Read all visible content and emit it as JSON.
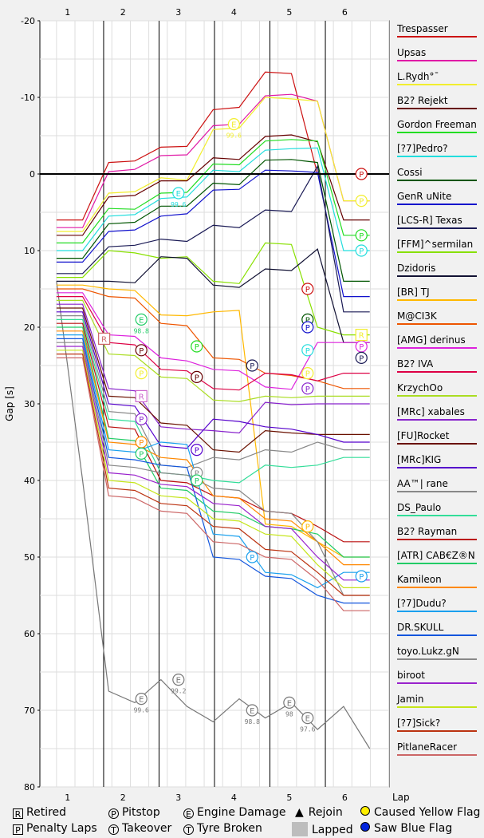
{
  "chart_data": {
    "type": "line",
    "xlabel": "Lap",
    "ylabel": "Gap [s]",
    "x_ticks": [
      "1",
      "2",
      "3",
      "4",
      "5",
      "6"
    ],
    "y_ticks": [
      "-20",
      "-10",
      "0",
      "10",
      "20",
      "30",
      "40",
      "50",
      "60",
      "70",
      "80"
    ],
    "ylim": [
      -20,
      80
    ],
    "xlim": [
      0.5,
      6.8
    ],
    "lap_lines": [
      1.65,
      2.65,
      3.65,
      4.65,
      5.65
    ],
    "baseline": 0,
    "grid": true,
    "series": [
      {
        "name": "Trespasser",
        "color": "#cc1111",
        "y": [
          6,
          6,
          -1.5,
          -1.7,
          -3.5,
          -3.6,
          -8.4,
          -8.7,
          -13.3,
          -13.1,
          0,
          0,
          0
        ]
      },
      {
        "name": "Upsas",
        "color": "#e01aa6",
        "y": [
          7,
          7,
          -0.3,
          -0.6,
          -2.4,
          -2.5,
          -6.3,
          -6.5,
          -10.2,
          -10.4,
          -9.5,
          3.5,
          3.5
        ]
      },
      {
        "name": "L.Rydh°¯",
        "color": "#f2ee2e",
        "y": [
          7.5,
          7.5,
          2.5,
          2.3,
          0.5,
          0.8,
          -5.8,
          -6.0,
          -10,
          -9.8,
          -9.5,
          3.5,
          3.5
        ]
      },
      {
        "name": "B2? Rejekt",
        "color": "#660000",
        "y": [
          8,
          8,
          3,
          2.8,
          0.9,
          0.9,
          -2.1,
          -1.9,
          -4.9,
          -5.1,
          -4.2,
          6.0,
          6.0
        ]
      },
      {
        "name": "Gordon Freeman",
        "color": "#22dd22",
        "y": [
          9,
          9,
          4.5,
          4.6,
          2.5,
          2.4,
          -1.3,
          -1.2,
          -4.3,
          -4.5,
          -4.3,
          8.0,
          8.0
        ]
      },
      {
        "name": "[?7]Pedro?",
        "color": "#22dddd",
        "y": [
          10,
          10,
          5.5,
          5.3,
          3.2,
          3.0,
          -0.5,
          -0.3,
          -3.1,
          -3.3,
          -3.4,
          10.0,
          10.0
        ]
      },
      {
        "name": "Cossi",
        "color": "#005500",
        "y": [
          11,
          11,
          6.5,
          6.3,
          4.2,
          4.2,
          1.2,
          1.4,
          -1.8,
          -1.9,
          -1.5,
          14.0,
          14.0
        ]
      },
      {
        "name": "GenR uNite",
        "color": "#1111cc",
        "y": [
          11.5,
          11.5,
          7.5,
          7.3,
          5.5,
          5.2,
          2.1,
          2.0,
          -0.5,
          -0.4,
          -0.2,
          16.0,
          16.0
        ]
      },
      {
        "name": "[LCS-R] Texas",
        "color": "#1a1a55",
        "y": [
          13,
          13,
          9.5,
          9.3,
          8.5,
          8.8,
          6.7,
          7.0,
          4.7,
          4.9,
          -1.0,
          18.0,
          18.0
        ]
      },
      {
        "name": "[FFM]^sermilan",
        "color": "#88e000",
        "y": [
          13.5,
          13.5,
          10,
          10.3,
          11,
          10.8,
          14,
          14.3,
          9,
          9.2,
          20,
          21,
          21
        ]
      },
      {
        "name": "Dzidoris",
        "color": "#111133",
        "y": [
          14,
          14,
          14,
          14.2,
          10.8,
          11.0,
          14.5,
          14.8,
          12.4,
          12.6,
          9.8,
          22,
          22
        ]
      },
      {
        "name": "[BR] TJ",
        "color": "#ffb800",
        "y": [
          14.5,
          14.5,
          15,
          15.2,
          18.4,
          18.5,
          18,
          17.8,
          45.7,
          46.0,
          48,
          50,
          50
        ]
      },
      {
        "name": "M@CI3K",
        "color": "#ee5500",
        "y": [
          15,
          15,
          16,
          16.2,
          19.5,
          19.8,
          24,
          24.2,
          26.0,
          26.3,
          27,
          28,
          28
        ]
      },
      {
        "name": "[AMG] derinus",
        "color": "#dd22dd",
        "y": [
          15.5,
          15.5,
          21,
          21.2,
          24,
          24.4,
          25.5,
          25.7,
          27.8,
          28.1,
          22,
          22,
          22
        ]
      },
      {
        "name": "B2? IVA",
        "color": "#dd0044",
        "y": [
          16,
          16,
          22,
          22.3,
          25.5,
          25.7,
          28,
          28.2,
          26,
          26.2,
          27,
          26,
          26
        ]
      },
      {
        "name": "KrzychOo",
        "color": "#aadd22",
        "y": [
          16.5,
          16.5,
          23.5,
          23.7,
          26.5,
          26.7,
          29.5,
          29.7,
          29,
          29.2,
          29,
          29,
          29
        ]
      },
      {
        "name": "[MRc] xabales",
        "color": "#8822cc",
        "y": [
          17,
          17,
          28,
          28.3,
          33,
          33.3,
          33.5,
          33.8,
          29.8,
          30.1,
          30,
          30,
          30
        ]
      },
      {
        "name": "[FU]Rocket",
        "color": "#6a1100",
        "y": [
          17.5,
          17.5,
          29,
          29.2,
          32.5,
          32.8,
          36,
          36.3,
          33.5,
          33.8,
          34,
          34,
          34
        ]
      },
      {
        "name": "[MRc]KIG",
        "color": "#5500cc",
        "y": [
          18,
          18,
          30,
          30.3,
          35.5,
          35.8,
          32,
          32.3,
          33,
          33.3,
          34,
          35,
          35
        ]
      },
      {
        "name": "AA™| rane",
        "color": "#888888",
        "y": [
          18.5,
          18.5,
          31,
          31.3,
          38,
          38.3,
          37,
          37.3,
          36,
          36.3,
          35,
          36,
          36
        ]
      },
      {
        "name": "DS_Paulo",
        "color": "#33dd99",
        "y": [
          19,
          19,
          32,
          32.3,
          39,
          39.3,
          40,
          40.3,
          38,
          38.3,
          38,
          37,
          37
        ]
      },
      {
        "name": "B2? Rayman",
        "color": "#bb1111",
        "y": [
          19.5,
          19.5,
          33,
          33.3,
          40,
          40.3,
          42,
          42.3,
          44,
          44.3,
          46,
          48,
          48
        ]
      },
      {
        "name": "[ATR] CAB€Z®N",
        "color": "#22cc66",
        "y": [
          20,
          20,
          34.5,
          34.8,
          41,
          41.3,
          44,
          44.3,
          46,
          46.3,
          47,
          50,
          50
        ]
      },
      {
        "name": "Kamileon",
        "color": "#ff8800",
        "y": [
          20.5,
          20.5,
          35,
          35.3,
          37,
          37.3,
          42,
          42.3,
          45,
          45.3,
          48,
          51,
          51
        ]
      },
      {
        "name": "[?7]Dudu?",
        "color": "#1aa0ee",
        "y": [
          21,
          21,
          36,
          36.3,
          35,
          35.3,
          47,
          47.3,
          52,
          52.3,
          54,
          52,
          52
        ]
      },
      {
        "name": "DR.SKULL",
        "color": "#1155dd",
        "y": [
          21.5,
          21.5,
          37,
          37.3,
          38,
          38.3,
          50,
          50.3,
          52.5,
          52.8,
          55,
          56,
          56
        ]
      },
      {
        "name": "toyo.Lukz.gN",
        "color": "#888888",
        "y": [
          22,
          22,
          38,
          38.3,
          39,
          39.3,
          41,
          41.3,
          44,
          44.3,
          48,
          55,
          55
        ]
      },
      {
        "name": "biroot",
        "color": "#9922cc",
        "y": [
          22.5,
          22.5,
          39,
          39.3,
          40.5,
          40.8,
          43,
          43.3,
          46,
          46.3,
          50,
          53,
          53
        ]
      },
      {
        "name": "Jamin",
        "color": "#c5e51a",
        "y": [
          23,
          23,
          40,
          40.3,
          42,
          42.3,
          45,
          45.3,
          47,
          47.3,
          51,
          54,
          54
        ]
      },
      {
        "name": "[?7]Sick?",
        "color": "#bb3311",
        "y": [
          23.5,
          23.5,
          41,
          41.3,
          43,
          43.3,
          46,
          46.3,
          49,
          49.3,
          52,
          55,
          55
        ]
      },
      {
        "name": "PitlaneRacer",
        "color": "#cc6666",
        "y": [
          24,
          24,
          42,
          42.3,
          44,
          44.3,
          48,
          48.3,
          50,
          50.3,
          53,
          57,
          57
        ]
      }
    ],
    "lapped_series": [
      {
        "color": "#777777",
        "y": [
          14,
          40,
          67.5,
          69,
          66,
          69.5,
          71.5,
          68.5,
          71,
          69,
          72.5,
          69.5,
          75
        ]
      }
    ]
  },
  "drivers": [
    {
      "name": "Trespasser",
      "color": "#cc1111"
    },
    {
      "name": "Upsas",
      "color": "#e01aa6"
    },
    {
      "name": "L.Rydh°¯",
      "color": "#f2ee2e"
    },
    {
      "name": "B2? Rejekt",
      "color": "#660000"
    },
    {
      "name": "Gordon Freeman",
      "color": "#22dd22"
    },
    {
      "name": "[?7]Pedro?",
      "color": "#22dddd"
    },
    {
      "name": "Cossi",
      "color": "#005500"
    },
    {
      "name": "GenR uNite",
      "color": "#1111cc"
    },
    {
      "name": "[LCS-R] Texas",
      "color": "#1a1a55"
    },
    {
      "name": "[FFM]^sermilan",
      "color": "#88e000"
    },
    {
      "name": "Dzidoris",
      "color": "#111133"
    },
    {
      "name": "[BR] TJ",
      "color": "#ffb800"
    },
    {
      "name": "M@CI3K",
      "color": "#ee5500"
    },
    {
      "name": "[AMG] derinus",
      "color": "#dd22dd"
    },
    {
      "name": "B2? IVA",
      "color": "#dd0044"
    },
    {
      "name": "KrzychOo",
      "color": "#aadd22"
    },
    {
      "name": "[MRc] xabales",
      "color": "#8822cc"
    },
    {
      "name": "[FU]Rocket",
      "color": "#6a1100"
    },
    {
      "name": "[MRc]KIG",
      "color": "#5500cc"
    },
    {
      "name": "AA™| rane",
      "color": "#888888"
    },
    {
      "name": "DS_Paulo",
      "color": "#33dd99"
    },
    {
      "name": "B2? Rayman",
      "color": "#bb1111"
    },
    {
      "name": "[ATR] CAB€Z®N",
      "color": "#22cc66"
    },
    {
      "name": "Kamileon",
      "color": "#ff8800"
    },
    {
      "name": "[?7]Dudu?",
      "color": "#1aa0ee"
    },
    {
      "name": "DR.SKULL",
      "color": "#1155dd"
    },
    {
      "name": "toyo.Lukz.gN",
      "color": "#888888"
    },
    {
      "name": "biroot",
      "color": "#9922cc"
    },
    {
      "name": "Jamin",
      "color": "#c5e51a"
    },
    {
      "name": "[?7]Sick?",
      "color": "#bb3311"
    },
    {
      "name": "PitlaneRacer",
      "color": "#cc6666"
    }
  ],
  "markers": [
    {
      "t": "P",
      "lap": 6.3,
      "gap": 0,
      "color": "#cc1111"
    },
    {
      "t": "P",
      "lap": 6.3,
      "gap": 3.5,
      "color": "#f2ee2e"
    },
    {
      "t": "P",
      "lap": 6.3,
      "gap": 8,
      "color": "#22dd22"
    },
    {
      "t": "P",
      "lap": 6.3,
      "gap": 10,
      "color": "#22dddd"
    },
    {
      "t": "P",
      "lap": 5.33,
      "gap": 15,
      "color": "#cc1111"
    },
    {
      "t": "P",
      "lap": 5.33,
      "gap": 19,
      "color": "#005500"
    },
    {
      "t": "P",
      "lap": 5.33,
      "gap": 20,
      "color": "#1111cc"
    },
    {
      "t": "P",
      "lap": 5.33,
      "gap": 23,
      "color": "#22dddd"
    },
    {
      "t": "P",
      "lap": 5.33,
      "gap": 26,
      "color": "#f2ee2e"
    },
    {
      "t": "P",
      "lap": 5.33,
      "gap": 28,
      "color": "#8822cc"
    },
    {
      "t": "P",
      "lap": 5.33,
      "gap": 46,
      "color": "#ffb800"
    },
    {
      "t": "P",
      "lap": 6.3,
      "gap": 21,
      "color": "#f2ee2e"
    },
    {
      "t": "P",
      "lap": 6.3,
      "gap": 22.5,
      "color": "#dd22dd"
    },
    {
      "t": "P",
      "lap": 6.3,
      "gap": 24,
      "color": "#1a1a55"
    },
    {
      "t": "P",
      "lap": 6.3,
      "gap": 52.5,
      "color": "#1aa0ee"
    },
    {
      "t": "P",
      "lap": 4.33,
      "gap": 25,
      "color": "#1a1a55"
    },
    {
      "t": "P",
      "lap": 4.33,
      "gap": 50,
      "color": "#1aa0ee"
    },
    {
      "t": "P",
      "lap": 3.33,
      "gap": 22.5,
      "color": "#22dd22"
    },
    {
      "t": "P",
      "lap": 3.33,
      "gap": 26.5,
      "color": "#660000"
    },
    {
      "t": "P",
      "lap": 3.33,
      "gap": 36,
      "color": "#5500cc"
    },
    {
      "t": "P",
      "lap": 3.33,
      "gap": 39,
      "color": "#888888"
    },
    {
      "t": "P",
      "lap": 3.33,
      "gap": 40,
      "color": "#22cc66"
    },
    {
      "t": "P",
      "lap": 2.33,
      "gap": 23,
      "color": "#660000"
    },
    {
      "t": "P",
      "lap": 2.33,
      "gap": 26,
      "color": "#f2ee2e"
    },
    {
      "t": "P",
      "lap": 2.33,
      "gap": 32,
      "color": "#8822cc"
    },
    {
      "t": "P",
      "lap": 2.33,
      "gap": 35,
      "color": "#ff8800"
    },
    {
      "t": "P",
      "lap": 2.33,
      "gap": 36.5,
      "color": "#22cc66"
    },
    {
      "t": "R",
      "lap": 1.66,
      "gap": 21.5,
      "color": "#cc6666"
    },
    {
      "t": "R",
      "lap": 2.33,
      "gap": 29,
      "color": "#cc66cc"
    },
    {
      "t": "E",
      "lap": 2.33,
      "gap": 19,
      "color": "#22cc66",
      "label": "98.8"
    },
    {
      "t": "E",
      "lap": 3.0,
      "gap": 2.5,
      "color": "#22dddd",
      "label": "99.6"
    },
    {
      "t": "E",
      "lap": 4.0,
      "gap": -6.5,
      "color": "#f2ee2e",
      "label": "99.6"
    },
    {
      "t": "E",
      "lap": 2.33,
      "gap": 68.5,
      "color": "#777777",
      "label": "99.6"
    },
    {
      "t": "E",
      "lap": 3.0,
      "gap": 66,
      "color": "#777777",
      "label": "99.2"
    },
    {
      "t": "E",
      "lap": 4.33,
      "gap": 70,
      "color": "#777777",
      "label": "98.8"
    },
    {
      "t": "E",
      "lap": 5.0,
      "gap": 69,
      "color": "#777777",
      "label": "98"
    },
    {
      "t": "E",
      "lap": 5.33,
      "gap": 71,
      "color": "#777777",
      "label": "97.6"
    },
    {
      "t": "R",
      "lap": 6.3,
      "gap": 21,
      "color": "#f2ee2e"
    }
  ],
  "legend": {
    "retired": "Retired",
    "pitstop": "Pitstop",
    "engine": "Engine Damage",
    "rejoin": "Rejoin",
    "yellow": "Caused Yellow Flag",
    "penalty": "Penalty Laps",
    "takeover": "Takeover",
    "tyre": "Tyre Broken",
    "lapped": "Lapped",
    "blue": "Saw Blue Flag"
  }
}
